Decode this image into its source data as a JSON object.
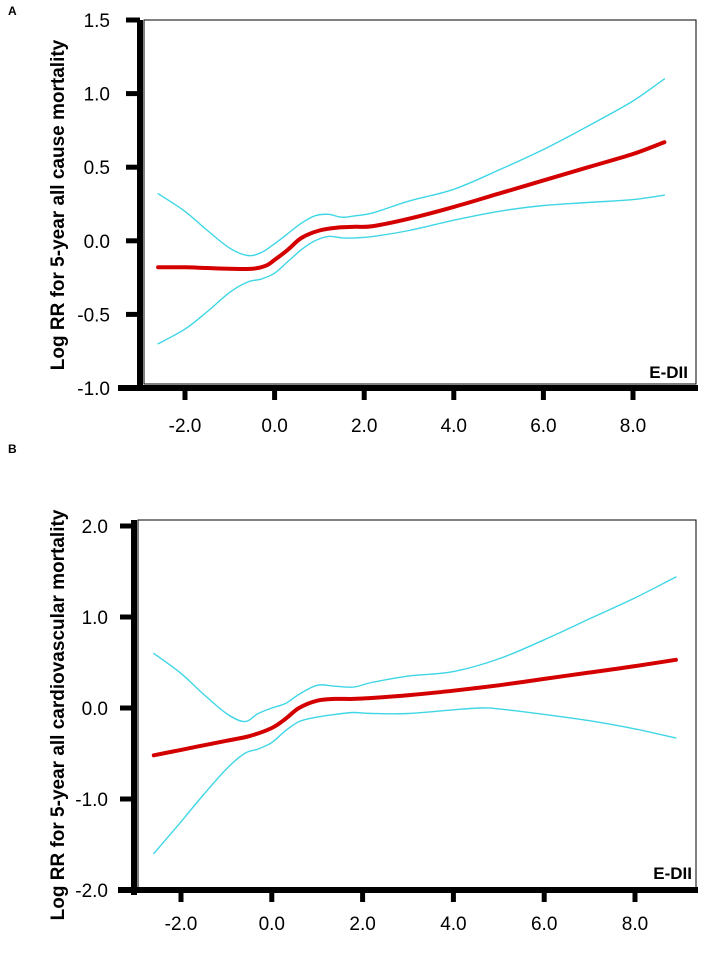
{
  "chart_data": [
    {
      "panel": "A",
      "type": "line",
      "ylabel": "Log RR for 5-year all cause mortality",
      "xlabel": "E-DII",
      "xlim": [
        -3.0,
        9.0
      ],
      "ylim": [
        -1.0,
        1.5
      ],
      "x_ticks": [
        "-2.0",
        "0.0",
        "2.0",
        "4.0",
        "6.0",
        "8.0"
      ],
      "x_tick_values": [
        -2.0,
        0.0,
        2.0,
        4.0,
        6.0,
        8.0
      ],
      "y_ticks": [
        "1.5",
        "1.0",
        "0.5",
        "0.0",
        "-0.5",
        "-1.0"
      ],
      "y_tick_values": [
        1.5,
        1.0,
        0.5,
        0.0,
        -0.5,
        -1.0
      ],
      "colors": {
        "estimate": "#d40000",
        "ci": "#3fd6e6",
        "axis": "#000000"
      },
      "series": [
        {
          "name": "estimate",
          "x": [
            -2.6,
            -2.0,
            -1.5,
            -1.0,
            -0.5,
            -0.2,
            0.0,
            0.3,
            0.6,
            1.0,
            1.4,
            1.8,
            2.2,
            3.0,
            4.0,
            5.0,
            6.0,
            7.0,
            8.0,
            8.7
          ],
          "y": [
            -0.18,
            -0.18,
            -0.185,
            -0.19,
            -0.19,
            -0.17,
            -0.13,
            -0.06,
            0.02,
            0.07,
            0.09,
            0.095,
            0.1,
            0.15,
            0.23,
            0.32,
            0.41,
            0.5,
            0.59,
            0.67
          ]
        },
        {
          "name": "upper CI",
          "x": [
            -2.6,
            -2.0,
            -1.5,
            -1.0,
            -0.6,
            -0.3,
            0.0,
            0.3,
            0.6,
            0.9,
            1.2,
            1.5,
            1.8,
            2.2,
            3.0,
            4.0,
            5.0,
            6.0,
            7.0,
            8.0,
            8.7
          ],
          "y": [
            0.32,
            0.2,
            0.07,
            -0.05,
            -0.1,
            -0.08,
            -0.02,
            0.05,
            0.12,
            0.17,
            0.18,
            0.16,
            0.17,
            0.19,
            0.27,
            0.35,
            0.48,
            0.62,
            0.78,
            0.95,
            1.1
          ]
        },
        {
          "name": "lower CI",
          "x": [
            -2.6,
            -2.0,
            -1.5,
            -1.0,
            -0.6,
            -0.3,
            0.0,
            0.3,
            0.6,
            0.9,
            1.2,
            1.5,
            1.8,
            2.2,
            3.0,
            4.0,
            5.0,
            6.0,
            7.0,
            8.0,
            8.7
          ],
          "y": [
            -0.7,
            -0.6,
            -0.48,
            -0.35,
            -0.28,
            -0.26,
            -0.22,
            -0.14,
            -0.06,
            0.0,
            0.03,
            0.02,
            0.02,
            0.03,
            0.07,
            0.14,
            0.2,
            0.24,
            0.26,
            0.28,
            0.31
          ]
        }
      ]
    },
    {
      "panel": "B",
      "type": "line",
      "ylabel": "Log RR for 5-year all cardiovascular mortality",
      "xlabel": "E-DII",
      "xlim": [
        -3.0,
        9.0
      ],
      "ylim": [
        -2.0,
        2.0
      ],
      "x_ticks": [
        "-2.0",
        "0.0",
        "2.0",
        "4.0",
        "6.0",
        "8.0"
      ],
      "x_tick_values": [
        -2.0,
        0.0,
        2.0,
        4.0,
        6.0,
        8.0
      ],
      "y_ticks": [
        "2.0",
        "1.0",
        "0.0",
        "-1.0",
        "-2.0"
      ],
      "y_tick_values": [
        2.0,
        1.0,
        0.0,
        -1.0,
        -2.0
      ],
      "colors": {
        "estimate": "#d40000",
        "ci": "#3fd6e6",
        "axis": "#000000"
      },
      "series": [
        {
          "name": "estimate",
          "x": [
            -2.6,
            -2.0,
            -1.5,
            -1.0,
            -0.5,
            0.0,
            0.3,
            0.6,
            1.0,
            1.4,
            1.8,
            2.2,
            3.0,
            4.0,
            5.0,
            6.0,
            7.0,
            8.0,
            8.9
          ],
          "y": [
            -0.52,
            -0.46,
            -0.41,
            -0.36,
            -0.31,
            -0.22,
            -0.12,
            0.0,
            0.08,
            0.1,
            0.1,
            0.11,
            0.14,
            0.19,
            0.25,
            0.32,
            0.39,
            0.46,
            0.53
          ]
        },
        {
          "name": "upper CI",
          "x": [
            -2.6,
            -2.0,
            -1.5,
            -1.0,
            -0.6,
            -0.3,
            0.0,
            0.3,
            0.6,
            1.0,
            1.4,
            1.8,
            2.2,
            3.0,
            4.0,
            5.0,
            6.0,
            7.0,
            8.0,
            8.9
          ],
          "y": [
            0.6,
            0.38,
            0.15,
            -0.06,
            -0.15,
            -0.06,
            0.0,
            0.05,
            0.15,
            0.25,
            0.24,
            0.23,
            0.28,
            0.35,
            0.4,
            0.54,
            0.75,
            0.98,
            1.21,
            1.44
          ]
        },
        {
          "name": "lower CI",
          "x": [
            -2.6,
            -2.0,
            -1.5,
            -1.0,
            -0.6,
            -0.3,
            0.0,
            0.3,
            0.6,
            1.0,
            1.4,
            1.8,
            2.2,
            3.0,
            4.0,
            4.6,
            5.0,
            6.0,
            7.0,
            8.0,
            8.9
          ],
          "y": [
            -1.6,
            -1.25,
            -0.95,
            -0.67,
            -0.5,
            -0.45,
            -0.38,
            -0.25,
            -0.15,
            -0.1,
            -0.07,
            -0.05,
            -0.06,
            -0.06,
            -0.02,
            0.0,
            -0.01,
            -0.07,
            -0.14,
            -0.23,
            -0.33
          ]
        }
      ]
    }
  ]
}
